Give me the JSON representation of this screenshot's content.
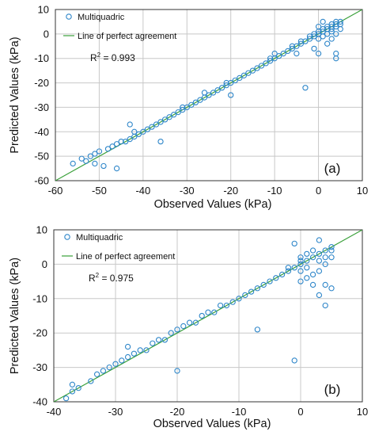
{
  "chart_data": [
    {
      "type": "scatter",
      "panel_label": "(a)",
      "xlabel": "Observed Values (kPa)",
      "ylabel": "Predicted Values (kPa)",
      "xlim": [
        -60,
        10
      ],
      "ylim": [
        -60,
        10
      ],
      "xticks": [
        -60,
        -50,
        -40,
        -30,
        -20,
        -10,
        0,
        10
      ],
      "yticks": [
        -60,
        -50,
        -40,
        -30,
        -20,
        -10,
        0,
        10
      ],
      "grid": true,
      "legend_position": "top-left",
      "annotation": {
        "r_prefix": "R",
        "r_exp": "2",
        "r_value": " = 0.993"
      },
      "series": [
        {
          "name": "Multiquadric",
          "kind": "points",
          "color": "#2e86c9",
          "points": [
            [
              -56,
              -53
            ],
            [
              -54,
              -51
            ],
            [
              -53,
              -52
            ],
            [
              -52,
              -50
            ],
            [
              -51,
              -49
            ],
            [
              -50,
              -48
            ],
            [
              -49,
              -54
            ],
            [
              -51,
              -53
            ],
            [
              -46,
              -55
            ],
            [
              -48,
              -47
            ],
            [
              -47,
              -46
            ],
            [
              -46,
              -45
            ],
            [
              -45,
              -44
            ],
            [
              -44,
              -44
            ],
            [
              -43,
              -43
            ],
            [
              -43,
              -37
            ],
            [
              -42,
              -42
            ],
            [
              -42,
              -40
            ],
            [
              -41,
              -41
            ],
            [
              -40,
              -40
            ],
            [
              -39,
              -39
            ],
            [
              -38,
              -38
            ],
            [
              -37,
              -37
            ],
            [
              -36,
              -44
            ],
            [
              -36,
              -36
            ],
            [
              -35,
              -35
            ],
            [
              -34,
              -34
            ],
            [
              -33,
              -33
            ],
            [
              -32,
              -32
            ],
            [
              -31,
              -30
            ],
            [
              -31,
              -31
            ],
            [
              -30,
              -30
            ],
            [
              -29,
              -29
            ],
            [
              -28,
              -28
            ],
            [
              -27,
              -27
            ],
            [
              -26,
              -24
            ],
            [
              -26,
              -26
            ],
            [
              -25,
              -25
            ],
            [
              -24,
              -24
            ],
            [
              -23,
              -23
            ],
            [
              -22,
              -22
            ],
            [
              -21,
              -21
            ],
            [
              -21,
              -20
            ],
            [
              -20,
              -20
            ],
            [
              -20,
              -25
            ],
            [
              -19,
              -19
            ],
            [
              -18,
              -18
            ],
            [
              -17,
              -17
            ],
            [
              -16,
              -16
            ],
            [
              -15,
              -15
            ],
            [
              -14,
              -14
            ],
            [
              -13,
              -13
            ],
            [
              -12,
              -12
            ],
            [
              -11,
              -11
            ],
            [
              -11,
              -10
            ],
            [
              -10,
              -10
            ],
            [
              -10,
              -8
            ],
            [
              -9,
              -9
            ],
            [
              -8,
              -8
            ],
            [
              -7,
              -7
            ],
            [
              -6,
              -6
            ],
            [
              -6,
              -5
            ],
            [
              -5,
              -5
            ],
            [
              -5,
              -8
            ],
            [
              -4,
              -4
            ],
            [
              -4,
              -3
            ],
            [
              -3,
              -22
            ],
            [
              -3,
              -3
            ],
            [
              -2,
              -2
            ],
            [
              -2,
              -1
            ],
            [
              -1,
              -1
            ],
            [
              -1,
              -6
            ],
            [
              -1,
              0
            ],
            [
              0,
              0
            ],
            [
              0,
              1
            ],
            [
              0,
              3
            ],
            [
              0,
              -2
            ],
            [
              0,
              -8
            ],
            [
              1,
              1
            ],
            [
              1,
              2
            ],
            [
              1,
              -1
            ],
            [
              1,
              5
            ],
            [
              2,
              2
            ],
            [
              2,
              3
            ],
            [
              2,
              0
            ],
            [
              2,
              -4
            ],
            [
              3,
              3
            ],
            [
              3,
              4
            ],
            [
              3,
              2
            ],
            [
              3,
              1
            ],
            [
              3,
              -2
            ],
            [
              4,
              4
            ],
            [
              4,
              5
            ],
            [
              4,
              3
            ],
            [
              4,
              0
            ],
            [
              4,
              -8
            ],
            [
              4,
              -10
            ],
            [
              5,
              5
            ],
            [
              5,
              4
            ],
            [
              5,
              2
            ]
          ]
        },
        {
          "name": "Line of perfect agreement",
          "kind": "line",
          "color": "#3aa03a",
          "points": [
            [
              -60,
              -60
            ],
            [
              10,
              10
            ]
          ]
        }
      ]
    },
    {
      "type": "scatter",
      "panel_label": "(b)",
      "xlabel": "Observed  Values (kPa)",
      "ylabel": "Predicted Values (kPa)",
      "xlim": [
        -40,
        10
      ],
      "ylim": [
        -40,
        10
      ],
      "xticks": [
        -40,
        -30,
        -20,
        -10,
        0,
        10
      ],
      "yticks": [
        -40,
        -30,
        -20,
        -10,
        0,
        10
      ],
      "grid": true,
      "legend_position": "top-left",
      "annotation": {
        "r_prefix": "R",
        "r_exp": "2",
        "r_value": " = 0.975"
      },
      "series": [
        {
          "name": "Multiquadric",
          "kind": "points",
          "color": "#2e86c9",
          "points": [
            [
              -38,
              -39
            ],
            [
              -37,
              -37
            ],
            [
              -37,
              -35
            ],
            [
              -36,
              -36
            ],
            [
              -34,
              -34
            ],
            [
              -33,
              -32
            ],
            [
              -32,
              -31
            ],
            [
              -31,
              -30
            ],
            [
              -30,
              -29
            ],
            [
              -29,
              -28
            ],
            [
              -28,
              -24
            ],
            [
              -28,
              -27
            ],
            [
              -27,
              -26
            ],
            [
              -26,
              -25
            ],
            [
              -25,
              -25
            ],
            [
              -24,
              -23
            ],
            [
              -23,
              -22
            ],
            [
              -22,
              -22
            ],
            [
              -21,
              -20
            ],
            [
              -20,
              -31
            ],
            [
              -20,
              -19
            ],
            [
              -19,
              -18
            ],
            [
              -18,
              -17
            ],
            [
              -17,
              -17
            ],
            [
              -16,
              -15
            ],
            [
              -15,
              -14
            ],
            [
              -14,
              -14
            ],
            [
              -13,
              -12
            ],
            [
              -12,
              -12
            ],
            [
              -11,
              -11
            ],
            [
              -10,
              -10
            ],
            [
              -9,
              -9
            ],
            [
              -8,
              -8
            ],
            [
              -7,
              -19
            ],
            [
              -7,
              -7
            ],
            [
              -6,
              -6
            ],
            [
              -5,
              -5
            ],
            [
              -4,
              -4
            ],
            [
              -3,
              -3
            ],
            [
              -2,
              -2
            ],
            [
              -2,
              -1
            ],
            [
              -1,
              6
            ],
            [
              -1,
              -28
            ],
            [
              -1,
              -1
            ],
            [
              0,
              0
            ],
            [
              0,
              1
            ],
            [
              0,
              2
            ],
            [
              0,
              -2
            ],
            [
              0,
              -5
            ],
            [
              1,
              1
            ],
            [
              1,
              3
            ],
            [
              1,
              -1
            ],
            [
              1,
              -4
            ],
            [
              2,
              2
            ],
            [
              2,
              4
            ],
            [
              2,
              -3
            ],
            [
              2,
              -6
            ],
            [
              3,
              3
            ],
            [
              3,
              7
            ],
            [
              3,
              -9
            ],
            [
              3,
              1
            ],
            [
              3,
              -2
            ],
            [
              4,
              4
            ],
            [
              4,
              -12
            ],
            [
              4,
              -6
            ],
            [
              4,
              2
            ],
            [
              4,
              0
            ],
            [
              5,
              5
            ],
            [
              5,
              4
            ],
            [
              5,
              -7
            ],
            [
              5,
              2
            ]
          ]
        },
        {
          "name": "Line of perfect agreement",
          "kind": "line",
          "color": "#3aa03a",
          "points": [
            [
              -40,
              -40
            ],
            [
              10,
              10
            ]
          ]
        }
      ]
    }
  ]
}
